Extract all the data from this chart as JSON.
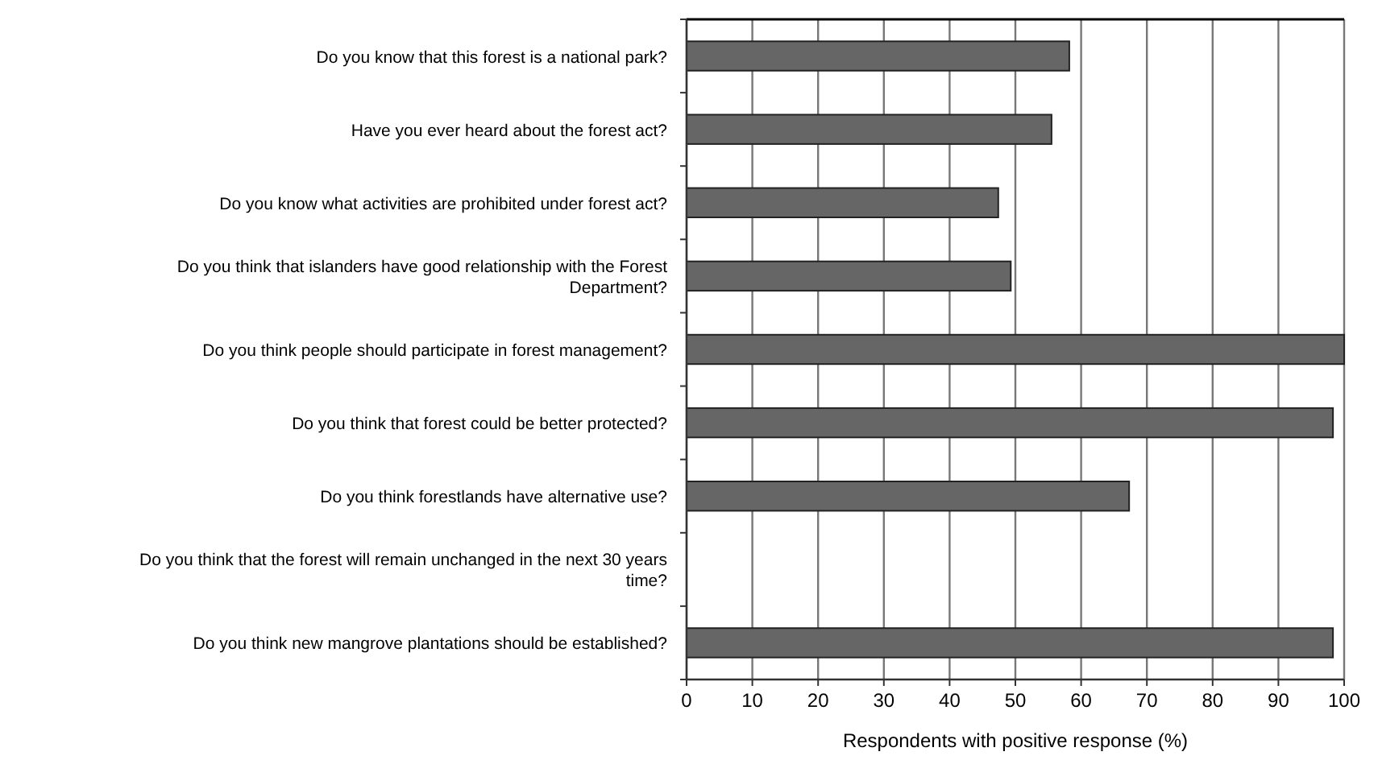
{
  "chart_data": {
    "type": "bar",
    "orientation": "horizontal",
    "xlabel": "Respondents with positive response (%)",
    "categories": [
      "Do you know that this forest is a national park?",
      "Have you ever heard about the forest act?",
      "Do you know what activities are prohibited under forest act?",
      "Do you think that islanders have good relationship with the Forest Department?",
      "Do you think people should participate in forest management?",
      "Do you think that forest could be better protected?",
      "Do you think forestlands have alternative use?",
      "Do you think that the forest will remain unchanged in the next 30 years time?",
      "Do you think new mangrove plantations should be established?"
    ],
    "values": [
      58.2,
      55.5,
      47.4,
      49.3,
      100,
      98.3,
      67.3,
      0,
      98.3
    ],
    "color": "#666666",
    "xlim": [
      0,
      100
    ],
    "xticks": [
      0,
      10,
      20,
      30,
      40,
      50,
      60,
      70,
      80,
      90,
      100
    ],
    "grid": "x"
  }
}
